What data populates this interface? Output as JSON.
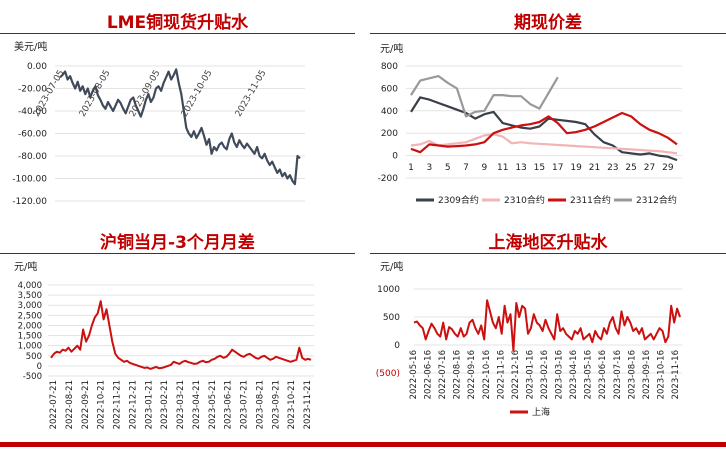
{
  "chart_data": [
    {
      "type": "line",
      "title": "LME铜现货升贴水",
      "ylabel": "美元/吨",
      "ylim": [
        -120,
        0
      ],
      "yticks": [
        "0.00",
        "-20.00",
        "-40.00",
        "-60.00",
        "-80.00",
        "-100.00",
        "-120.00"
      ],
      "xticks": [
        "2023-07-05",
        "2023-08-05",
        "2023-09-05",
        "2023-10-05",
        "2023-11-05"
      ],
      "grid": true,
      "color": "#404a5a",
      "series": [
        {
          "values": [
            -10,
            -8,
            -5,
            -12,
            -9,
            -15,
            -20,
            -14,
            -22,
            -18,
            -25,
            -20,
            -28,
            -22,
            -18,
            -26,
            -30,
            -35,
            -38,
            -32,
            -36,
            -40,
            -35,
            -30,
            -33,
            -38,
            -42,
            -36,
            -30,
            -28,
            -35,
            -40,
            -45,
            -38,
            -30,
            -25,
            -32,
            -28,
            -20,
            -18,
            -22,
            -15,
            -10,
            -5,
            -12,
            -8,
            -3,
            -15,
            -25,
            -40,
            -55,
            -60,
            -63,
            -58,
            -64,
            -60,
            -55,
            -62,
            -70,
            -65,
            -78,
            -72,
            -75,
            -70,
            -68,
            -72,
            -74,
            -65,
            -60,
            -68,
            -72,
            -66,
            -70,
            -73,
            -69,
            -72,
            -75,
            -78,
            -72,
            -80,
            -82,
            -78,
            -84,
            -88,
            -85,
            -90,
            -95,
            -92,
            -98,
            -95,
            -100,
            -97,
            -102,
            -105,
            -80,
            -82
          ]
        }
      ]
    },
    {
      "type": "line",
      "title": "期现价差",
      "ylabel": "元/吨",
      "ylim": [
        -200,
        800
      ],
      "yticks": [
        "800",
        "600",
        "400",
        "200",
        "0",
        "-200"
      ],
      "categories": [
        "1",
        "3",
        "5",
        "7",
        "9",
        "11",
        "13",
        "15",
        "17",
        "19",
        "21",
        "23",
        "25",
        "27",
        "29"
      ],
      "legend": "bottom",
      "series": [
        {
          "name": "2309合约",
          "color": "#3a3f4a",
          "values": [
            [
              1,
              390
            ],
            [
              2,
              520
            ],
            [
              3,
              500
            ],
            [
              4,
              470
            ],
            [
              5,
              440
            ],
            [
              6,
              410
            ],
            [
              7,
              380
            ],
            [
              8,
              330
            ],
            [
              9,
              370
            ],
            [
              10,
              390
            ],
            [
              11,
              290
            ],
            [
              12,
              270
            ],
            [
              13,
              250
            ],
            [
              14,
              240
            ],
            [
              15,
              260
            ],
            [
              16,
              330
            ],
            [
              17,
              320
            ],
            [
              18,
              310
            ],
            [
              19,
              300
            ],
            [
              20,
              280
            ],
            [
              21,
              190
            ],
            [
              22,
              120
            ],
            [
              23,
              90
            ],
            [
              24,
              30
            ],
            [
              25,
              20
            ],
            [
              26,
              10
            ],
            [
              27,
              20
            ],
            [
              28,
              0
            ],
            [
              29,
              -10
            ],
            [
              30,
              -40
            ]
          ]
        },
        {
          "name": "2310合约",
          "color": "#f2b4b4",
          "values": [
            [
              1,
              90
            ],
            [
              2,
              100
            ],
            [
              3,
              130
            ],
            [
              4,
              90
            ],
            [
              5,
              100
            ],
            [
              6,
              110
            ],
            [
              7,
              120
            ],
            [
              8,
              150
            ],
            [
              9,
              180
            ],
            [
              10,
              190
            ],
            [
              11,
              170
            ],
            [
              12,
              110
            ],
            [
              13,
              120
            ],
            [
              14,
              110
            ],
            [
              15,
              105
            ],
            [
              16,
              100
            ],
            [
              17,
              95
            ],
            [
              18,
              90
            ],
            [
              19,
              85
            ],
            [
              20,
              80
            ],
            [
              21,
              75
            ],
            [
              22,
              70
            ],
            [
              23,
              65
            ],
            [
              24,
              60
            ],
            [
              25,
              55
            ],
            [
              26,
              50
            ],
            [
              27,
              45
            ],
            [
              28,
              40
            ],
            [
              29,
              30
            ],
            [
              30,
              20
            ]
          ]
        },
        {
          "name": "2311合约",
          "color": "#cc1010",
          "values": [
            [
              1,
              60
            ],
            [
              2,
              30
            ],
            [
              3,
              100
            ],
            [
              4,
              90
            ],
            [
              5,
              80
            ],
            [
              6,
              85
            ],
            [
              7,
              90
            ],
            [
              8,
              100
            ],
            [
              9,
              120
            ],
            [
              10,
              200
            ],
            [
              11,
              230
            ],
            [
              12,
              250
            ],
            [
              13,
              270
            ],
            [
              14,
              280
            ],
            [
              15,
              300
            ],
            [
              16,
              350
            ],
            [
              17,
              290
            ],
            [
              18,
              200
            ],
            [
              19,
              210
            ],
            [
              20,
              230
            ],
            [
              21,
              260
            ],
            [
              22,
              300
            ],
            [
              23,
              340
            ],
            [
              24,
              380
            ],
            [
              25,
              350
            ],
            [
              26,
              280
            ],
            [
              27,
              230
            ],
            [
              28,
              200
            ],
            [
              29,
              160
            ],
            [
              30,
              100
            ]
          ]
        },
        {
          "name": "2312合约",
          "color": "#999999",
          "values": [
            [
              1,
              540
            ],
            [
              2,
              670
            ],
            [
              3,
              690
            ],
            [
              4,
              710
            ],
            [
              5,
              650
            ],
            [
              6,
              600
            ],
            [
              7,
              350
            ],
            [
              8,
              390
            ],
            [
              9,
              400
            ],
            [
              10,
              540
            ],
            [
              11,
              540
            ],
            [
              12,
              530
            ],
            [
              13,
              530
            ],
            [
              14,
              460
            ],
            [
              15,
              420
            ],
            [
              16,
              560
            ],
            [
              17,
              700
            ]
          ]
        }
      ]
    },
    {
      "type": "line",
      "title": "沪铜当月-3个月月差",
      "ylabel": "元/吨",
      "ylim": [
        -500,
        4000
      ],
      "yticks": [
        "4,000",
        "3,500",
        "3,000",
        "2,500",
        "2,000",
        "1,500",
        "1,000",
        "500",
        "0",
        "-500"
      ],
      "xticks": [
        "2022-07-21",
        "2022-08-21",
        "2022-09-21",
        "2022-10-21",
        "2022-11-21",
        "2022-12-21",
        "2023-01-21",
        "2023-02-21",
        "2023-03-21",
        "2023-04-21",
        "2023-05-21",
        "2023-06-21",
        "2023-07-21",
        "2023-08-21",
        "2023-09-21",
        "2023-10-21",
        "2023-11-21"
      ],
      "color": "#cc1010",
      "series": [
        {
          "values": [
            400,
            600,
            700,
            650,
            800,
            750,
            900,
            700,
            850,
            1000,
            800,
            1800,
            1200,
            1500,
            2000,
            2400,
            2600,
            3200,
            2300,
            2800,
            2000,
            1200,
            600,
            400,
            300,
            200,
            250,
            150,
            100,
            50,
            0,
            -50,
            -100,
            -80,
            -150,
            -100,
            -50,
            -120,
            -100,
            -50,
            0,
            50,
            200,
            150,
            100,
            200,
            250,
            180,
            150,
            100,
            120,
            200,
            250,
            180,
            200,
            300,
            350,
            450,
            500,
            400,
            450,
            600,
            800,
            700,
            600,
            500,
            450,
            550,
            600,
            500,
            400,
            350,
            450,
            500,
            400,
            300,
            350,
            450,
            400,
            350,
            300,
            250,
            200,
            250,
            300,
            900,
            400,
            300,
            350,
            300
          ]
        }
      ]
    },
    {
      "type": "line",
      "title": "上海地区升贴水",
      "ylabel": "元/吨",
      "ylim": [
        -500,
        1000
      ],
      "yticks": [
        "1000",
        "500",
        "0",
        "(500)"
      ],
      "xticks": [
        "2022-05-16",
        "2022-06-16",
        "2022-07-16",
        "2022-08-16",
        "2022-09-16",
        "2022-10-16",
        "2022-11-16",
        "2022-12-16",
        "2023-01-16",
        "2023-02-16",
        "2023-03-16",
        "2023-04-16",
        "2023-05-16",
        "2023-06-16",
        "2023-07-16",
        "2023-08-16",
        "2023-09-16",
        "2023-10-16",
        "2023-11-16"
      ],
      "legend": "bottom",
      "series": [
        {
          "name": "上海",
          "color": "#cc1010",
          "values": [
            400,
            420,
            350,
            300,
            100,
            250,
            380,
            300,
            200,
            150,
            400,
            100,
            320,
            280,
            200,
            150,
            300,
            150,
            200,
            400,
            450,
            300,
            200,
            350,
            100,
            800,
            600,
            400,
            300,
            500,
            200,
            700,
            400,
            550,
            -100,
            750,
            500,
            700,
            650,
            200,
            300,
            550,
            400,
            350,
            250,
            450,
            300,
            200,
            100,
            550,
            250,
            300,
            200,
            150,
            100,
            250,
            200,
            300,
            100,
            150,
            200,
            50,
            250,
            150,
            100,
            300,
            200,
            400,
            500,
            300,
            200,
            600,
            350,
            500,
            400,
            250,
            300,
            200,
            300,
            100,
            150,
            200,
            100,
            200,
            300,
            250,
            50,
            150,
            700,
            400,
            650,
            500
          ]
        }
      ]
    }
  ]
}
